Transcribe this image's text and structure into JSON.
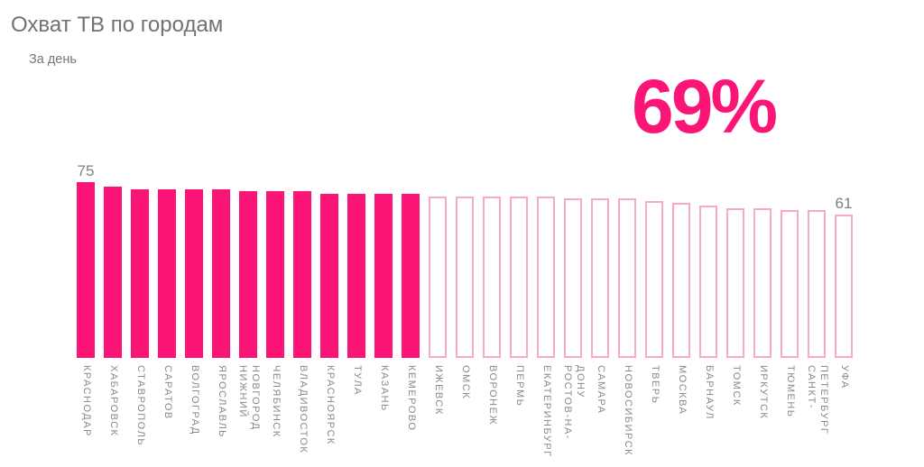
{
  "header": {
    "title": "Охват ТВ по городам",
    "subtitle": "За день"
  },
  "headline": {
    "value": "69%"
  },
  "colors": {
    "bar_fill": "#FA1576",
    "bar_outline": "#F8A9CA",
    "headline_pink": "#FA1576",
    "title_gray": "#6F7173",
    "subtitle_gray": "#747678",
    "value_label_gray": "#7D7F82",
    "category_label_gray": "#87898B"
  },
  "chart_data": {
    "type": "bar",
    "title": "Охват ТВ по городам",
    "subtitle": "За день",
    "annotation": "69%",
    "unit": "%",
    "ylim": [
      0,
      80
    ],
    "grid": false,
    "legend": "none",
    "sorted": "descending",
    "bar_styles_note": "first filled_count bars are solid pink, the rest are white with pink outline",
    "filled_count": 13,
    "labeled_bars": [
      0,
      28
    ],
    "categories": [
      "КРАСНОДАР",
      "ХАБАРОВСК",
      "СТАВРОПОЛЬ",
      "САРАТОВ",
      "ВОЛГОГРАД",
      "ЯРОСЛАВЛЬ",
      "НИЖНИЙ НОВГОРОД",
      "ЧЕЛЯБИНСК",
      "ВЛАДИВОСТОК",
      "КРАСНОЯРСК",
      "ТУЛА",
      "КАЗАНЬ",
      "КЕМЕРОВО",
      "ИЖЕВСК",
      "ОМСК",
      "ВОРОНЕЖ",
      "ПЕРМЬ",
      "ЕКАТЕРИНБУРГ",
      "РОСТОВ-НА-ДОНУ",
      "САМАРА",
      "НОВОСИБИРСК",
      "ТВЕРЬ",
      "МОСКВА",
      "БАРНАУЛ",
      "ТОМСК",
      "ИРКУТСК",
      "ТЮМЕНЬ",
      "САНКТ-ПЕТЕРБУРГ",
      "УФА"
    ],
    "values": [
      75,
      73,
      72,
      72,
      72,
      72,
      71,
      71,
      71,
      70,
      70,
      70,
      70,
      69,
      69,
      69,
      69,
      69,
      68,
      68,
      68,
      67,
      66,
      65,
      64,
      64,
      63,
      63,
      61
    ]
  }
}
